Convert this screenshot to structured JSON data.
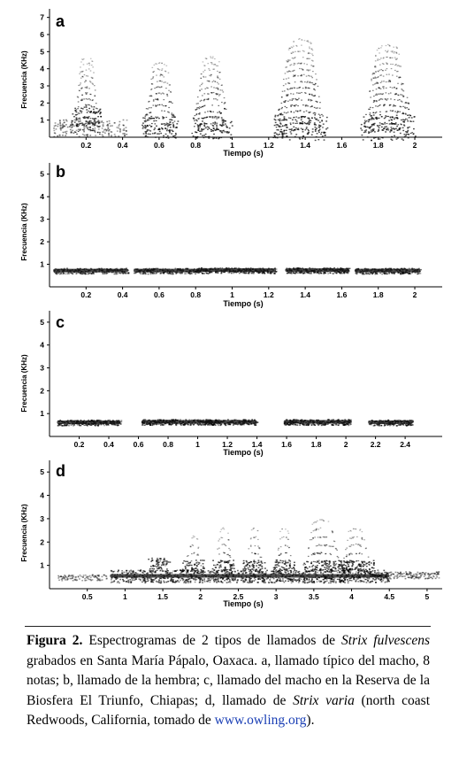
{
  "figure": {
    "panels": [
      {
        "letter": "a",
        "xlabel": "Tiempo (s)",
        "ylabel": "Frecuencia (KHz)",
        "yticks": [
          "1",
          "2",
          "3",
          "4",
          "5",
          "6",
          "7"
        ],
        "ymax": 7.5,
        "xmax": 2.15,
        "xticks": [
          {
            "v": 0.2,
            "t": "0.2"
          },
          {
            "v": 0.4,
            "t": "0.4"
          },
          {
            "v": 0.6,
            "t": "0.6"
          },
          {
            "v": 0.8,
            "t": "0.8"
          },
          {
            "v": 1.0,
            "t": "1"
          },
          {
            "v": 1.2,
            "t": "1.2"
          },
          {
            "v": 1.4,
            "t": "1.4"
          },
          {
            "v": 1.6,
            "t": "1.6"
          },
          {
            "v": 1.8,
            "t": "1.8"
          },
          {
            "v": 2.0,
            "t": "2"
          }
        ],
        "notes": [
          {
            "s": 0.02,
            "e": 0.42,
            "f": 0.55,
            "w": 1.0,
            "d": 0.35
          },
          {
            "s": 0.12,
            "e": 0.28,
            "f": 1.2,
            "w": 1.2,
            "d": 0.0,
            "h": 4.7,
            "c": 0.2
          },
          {
            "s": 0.5,
            "e": 0.7,
            "f": 0.6,
            "w": 1.3,
            "d": 0.0,
            "h": 4.6,
            "c": 0.6
          },
          {
            "s": 0.78,
            "e": 1.0,
            "f": 0.6,
            "w": 1.3,
            "d": 0.0,
            "h": 4.8,
            "c": 0.88
          },
          {
            "s": 1.22,
            "e": 1.52,
            "f": 0.6,
            "w": 1.5,
            "d": 0.0,
            "h": 5.8,
            "c": 1.37
          },
          {
            "s": 1.7,
            "e": 2.0,
            "f": 0.6,
            "w": 1.5,
            "d": 0.0,
            "h": 5.6,
            "c": 1.85
          }
        ]
      },
      {
        "letter": "b",
        "xlabel": "Tiempo (s)",
        "ylabel": "Frecuencia (KHz)",
        "yticks": [
          "1",
          "2",
          "3",
          "4",
          "5"
        ],
        "ymax": 5.5,
        "xmax": 2.15,
        "xticks": [
          {
            "v": 0.2,
            "t": "0.2"
          },
          {
            "v": 0.4,
            "t": "0.4"
          },
          {
            "v": 0.6,
            "t": "0.6"
          },
          {
            "v": 0.8,
            "t": "0.8"
          },
          {
            "v": 1.0,
            "t": "1"
          },
          {
            "v": 1.2,
            "t": "1.2"
          },
          {
            "v": 1.4,
            "t": "1.4"
          },
          {
            "v": 1.6,
            "t": "1.6"
          },
          {
            "v": 1.8,
            "t": "1.8"
          },
          {
            "v": 2.0,
            "t": "2"
          }
        ],
        "notes": [
          {
            "s": 0.02,
            "e": 0.43,
            "f": 0.72,
            "w": 0.25,
            "d": 0.6
          },
          {
            "s": 0.46,
            "e": 0.8,
            "f": 0.72,
            "w": 0.25,
            "d": 0.6
          },
          {
            "s": 0.8,
            "e": 1.24,
            "f": 0.74,
            "w": 0.25,
            "d": 0.7
          },
          {
            "s": 1.29,
            "e": 1.64,
            "f": 0.74,
            "w": 0.25,
            "d": 0.7
          },
          {
            "s": 1.67,
            "e": 2.03,
            "f": 0.72,
            "w": 0.25,
            "d": 0.65
          }
        ]
      },
      {
        "letter": "c",
        "xlabel": "Tiempo (s)",
        "ylabel": "Frecuencia (KHz)",
        "yticks": [
          "1",
          "2",
          "3",
          "4",
          "5"
        ],
        "ymax": 5.5,
        "xmax": 2.65,
        "xticks": [
          {
            "v": 0.2,
            "t": "0.2"
          },
          {
            "v": 0.4,
            "t": "0.4"
          },
          {
            "v": 0.6,
            "t": "0.6"
          },
          {
            "v": 0.8,
            "t": "0.8"
          },
          {
            "v": 1.0,
            "t": "1"
          },
          {
            "v": 1.2,
            "t": "1.2"
          },
          {
            "v": 1.4,
            "t": "1.4"
          },
          {
            "v": 1.6,
            "t": "1.6"
          },
          {
            "v": 1.8,
            "t": "1.8"
          },
          {
            "v": 2.0,
            "t": "2"
          },
          {
            "v": 2.2,
            "t": "2.2"
          },
          {
            "v": 2.4,
            "t": "2.4"
          }
        ],
        "notes": [
          {
            "s": 0.05,
            "e": 0.48,
            "f": 0.62,
            "w": 0.25,
            "d": 0.75
          },
          {
            "s": 0.62,
            "e": 1.1,
            "f": 0.64,
            "w": 0.25,
            "d": 0.8
          },
          {
            "s": 1.05,
            "e": 1.4,
            "f": 0.64,
            "w": 0.25,
            "d": 0.75
          },
          {
            "s": 1.58,
            "e": 2.03,
            "f": 0.64,
            "w": 0.25,
            "d": 0.8
          },
          {
            "s": 2.15,
            "e": 2.45,
            "f": 0.62,
            "w": 0.25,
            "d": 0.75
          }
        ]
      },
      {
        "letter": "d",
        "xlabel": "Tiempo (s)",
        "ylabel": "Frecuencia (KHz)",
        "yticks": [
          "1",
          "2",
          "3",
          "4",
          "5"
        ],
        "ymax": 5.5,
        "xmax": 5.2,
        "xticks": [
          {
            "v": 0.5,
            "t": "0.5"
          },
          {
            "v": 1.0,
            "t": "1"
          },
          {
            "v": 1.5,
            "t": "1.5"
          },
          {
            "v": 2.0,
            "t": "2"
          },
          {
            "v": 2.5,
            "t": "2.5"
          },
          {
            "v": 3.0,
            "t": "3"
          },
          {
            "v": 3.5,
            "t": "3.5"
          },
          {
            "v": 4.0,
            "t": "4"
          },
          {
            "v": 4.5,
            "t": "4.5"
          },
          {
            "v": 5.0,
            "t": "5"
          }
        ],
        "notes": [
          {
            "s": 0.1,
            "e": 0.75,
            "f": 0.5,
            "w": 0.25,
            "d": 0.2
          },
          {
            "s": 0.8,
            "e": 4.5,
            "f": 0.55,
            "w": 0.55,
            "d": 0.7
          },
          {
            "s": 4.3,
            "e": 5.15,
            "f": 0.6,
            "w": 0.3,
            "d": 0.3
          },
          {
            "s": 1.3,
            "e": 1.6,
            "f": 1.1,
            "w": 0.5,
            "d": 0.0,
            "h": 1.5,
            "c": 1.45
          },
          {
            "s": 1.75,
            "e": 2.05,
            "f": 1.0,
            "w": 0.5,
            "d": 0.0,
            "h": 2.3,
            "c": 1.9
          },
          {
            "s": 2.15,
            "e": 2.45,
            "f": 1.0,
            "w": 0.5,
            "d": 0.0,
            "h": 2.6,
            "c": 2.3
          },
          {
            "s": 2.55,
            "e": 2.85,
            "f": 1.0,
            "w": 0.5,
            "d": 0.0,
            "h": 2.6,
            "c": 2.7
          },
          {
            "s": 2.95,
            "e": 3.25,
            "f": 1.0,
            "w": 0.5,
            "d": 0.0,
            "h": 2.6,
            "c": 3.1
          },
          {
            "s": 3.35,
            "e": 4.0,
            "f": 1.0,
            "w": 0.5,
            "d": 0.0,
            "h": 3.0,
            "c": 3.6
          },
          {
            "s": 3.8,
            "e": 4.3,
            "f": 1.0,
            "w": 0.5,
            "d": 0.0,
            "h": 2.7,
            "c": 4.05
          }
        ]
      }
    ]
  },
  "caption": {
    "label": "Figura 2.",
    "t1": " Espectrogramas de 2 tipos de llamados de ",
    "sp1": "Strix fulvescens",
    "t2": " grabados en Santa María Pápalo, Oaxaca. a, llamado típico del macho, 8 notas;  b, llamado de la hembra; c, llamado del macho en la Reserva de la Biosfera El Triunfo, Chiapas;  d, llamado de ",
    "sp2": "Strix varia",
    "t3": " (north coast Redwoods, California, tomado de ",
    "link": "www.owling.org",
    "t4": ")."
  }
}
